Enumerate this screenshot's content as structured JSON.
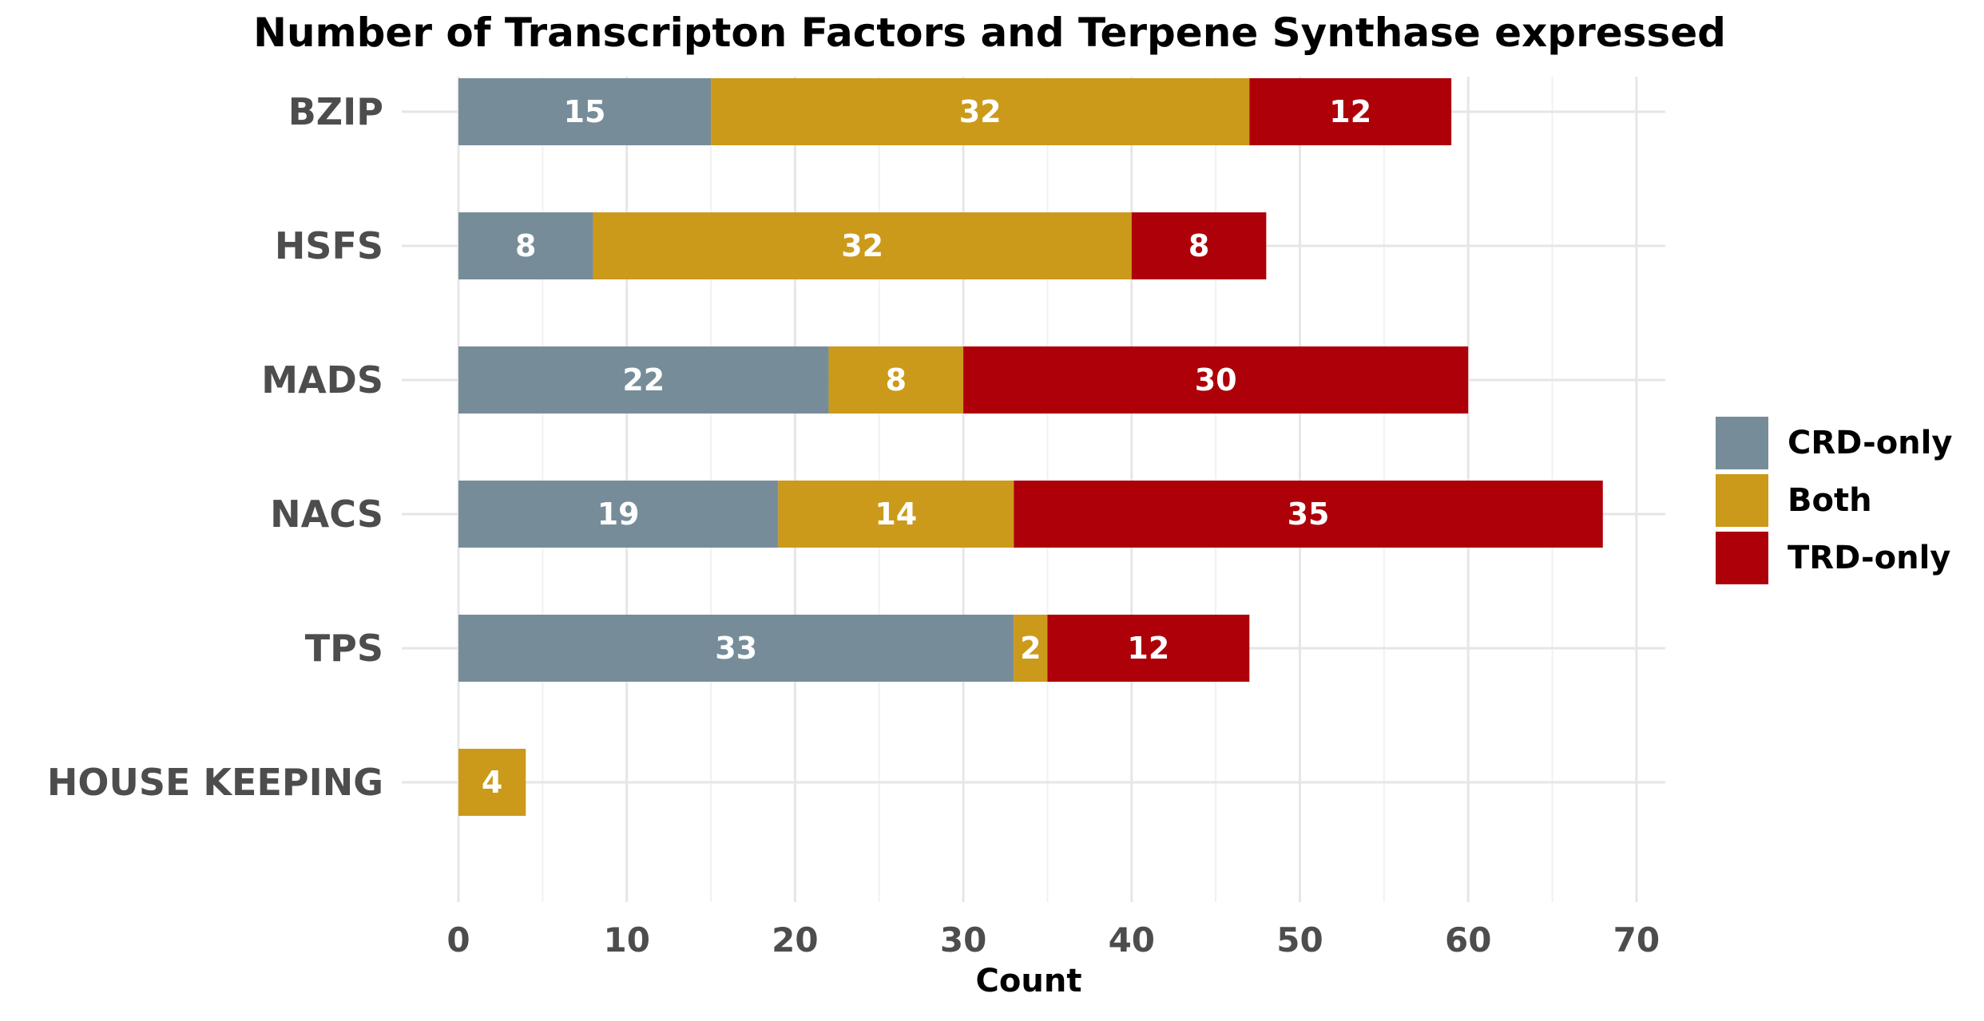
{
  "chart_data": {
    "type": "bar",
    "orientation": "horizontal",
    "stacked": true,
    "title": "Number of Transcripton Factors and Terpene Synthase expressed",
    "xlabel": "Count",
    "ylabel": "",
    "categories": [
      "BZIP",
      "HSFS",
      "MADS",
      "NACS",
      "TPS",
      "HOUSE KEEPING"
    ],
    "series": [
      {
        "name": "CRD-only",
        "color": "#768d99",
        "values": [
          15,
          8,
          22,
          19,
          33,
          0
        ]
      },
      {
        "name": "Both",
        "color": "#cc9a1a",
        "values": [
          32,
          32,
          8,
          14,
          2,
          4
        ]
      },
      {
        "name": "TRD-only",
        "color": "#ad0009",
        "values": [
          12,
          8,
          30,
          35,
          12,
          0
        ]
      }
    ],
    "xlim": [
      0,
      70
    ],
    "xticks": [
      0,
      10,
      20,
      30,
      40,
      50,
      60,
      70
    ],
    "grid": true,
    "legend_position": "right"
  }
}
